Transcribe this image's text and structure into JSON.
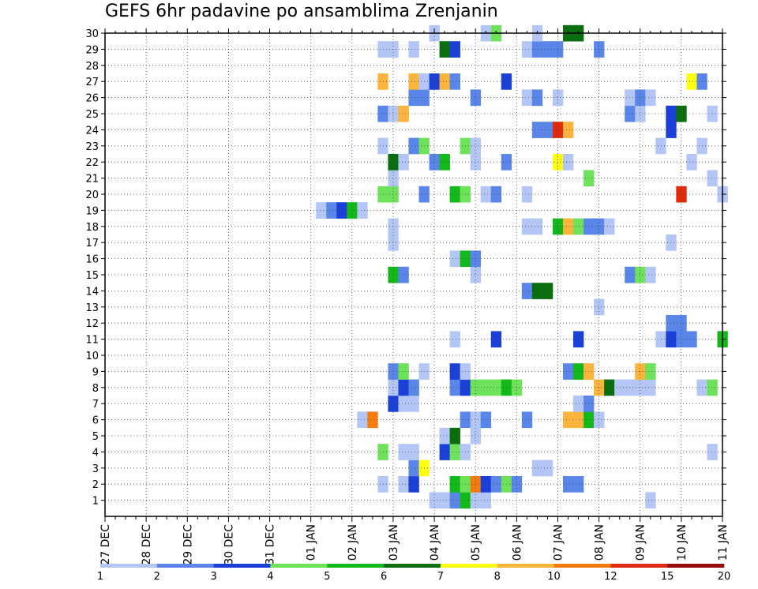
{
  "chart_data": {
    "type": "heatmap",
    "title": "GEFS 6hr padavine po ansamblima Zrenjanin",
    "x_ticks": [
      "27 DEC",
      "28 DEC",
      "29 DEC",
      "30 DEC",
      "31 DEC",
      "01 JAN",
      "02 JAN",
      "03 JAN",
      "04 JAN",
      "05 JAN",
      "06 JAN",
      "07 JAN",
      "08 JAN",
      "09 JAN",
      "10 JAN",
      "11 JAN"
    ],
    "x_range_hours": [
      0,
      360
    ],
    "step_hours": 6,
    "y_ticks": [
      "1",
      "2",
      "3",
      "4",
      "5",
      "6",
      "7",
      "8",
      "9",
      "10",
      "11",
      "12",
      "13",
      "14",
      "15",
      "16",
      "17",
      "18",
      "19",
      "20",
      "21",
      "22",
      "23",
      "24",
      "25",
      "26",
      "27",
      "28",
      "29",
      "30"
    ],
    "y_range": [
      0,
      30
    ],
    "grid": true,
    "colorbar": {
      "labels": [
        "1",
        "2",
        "3",
        "4",
        "5",
        "6",
        "7",
        "8",
        "10",
        "12",
        "15",
        "20"
      ],
      "colors": [
        "#b3c6f5",
        "#5a86ea",
        "#1a40d8",
        "#6de25a",
        "#13b81a",
        "#0b6e0e",
        "#ffff14",
        "#fbb43c",
        "#f57c0d",
        "#e02a0c",
        "#960c0c"
      ]
    },
    "cells": [
      {
        "x": 192,
        "y": 1,
        "c": 0
      },
      {
        "x": 198,
        "y": 1,
        "c": 0
      },
      {
        "x": 204,
        "y": 1,
        "c": 1
      },
      {
        "x": 210,
        "y": 1,
        "c": 4
      },
      {
        "x": 216,
        "y": 1,
        "c": 0
      },
      {
        "x": 222,
        "y": 1,
        "c": 0
      },
      {
        "x": 318,
        "y": 1,
        "c": 0
      },
      {
        "x": 162,
        "y": 2,
        "c": 0
      },
      {
        "x": 174,
        "y": 2,
        "c": 0
      },
      {
        "x": 180,
        "y": 2,
        "c": 2
      },
      {
        "x": 204,
        "y": 2,
        "c": 4
      },
      {
        "x": 210,
        "y": 2,
        "c": 3
      },
      {
        "x": 216,
        "y": 2,
        "c": 8
      },
      {
        "x": 222,
        "y": 2,
        "c": 2
      },
      {
        "x": 228,
        "y": 2,
        "c": 1
      },
      {
        "x": 234,
        "y": 2,
        "c": 3
      },
      {
        "x": 240,
        "y": 2,
        "c": 1
      },
      {
        "x": 270,
        "y": 2,
        "c": 1
      },
      {
        "x": 276,
        "y": 2,
        "c": 1
      },
      {
        "x": 180,
        "y": 3,
        "c": 1
      },
      {
        "x": 186,
        "y": 3,
        "c": 6
      },
      {
        "x": 252,
        "y": 3,
        "c": 0
      },
      {
        "x": 258,
        "y": 3,
        "c": 0
      },
      {
        "x": 162,
        "y": 4,
        "c": 3
      },
      {
        "x": 174,
        "y": 4,
        "c": 0
      },
      {
        "x": 180,
        "y": 4,
        "c": 0
      },
      {
        "x": 198,
        "y": 4,
        "c": 2
      },
      {
        "x": 204,
        "y": 4,
        "c": 3
      },
      {
        "x": 210,
        "y": 4,
        "c": 0
      },
      {
        "x": 354,
        "y": 4,
        "c": 0
      },
      {
        "x": 198,
        "y": 5,
        "c": 0
      },
      {
        "x": 204,
        "y": 5,
        "c": 5
      },
      {
        "x": 216,
        "y": 5,
        "c": 0
      },
      {
        "x": 150,
        "y": 6,
        "c": 0
      },
      {
        "x": 156,
        "y": 6,
        "c": 8
      },
      {
        "x": 210,
        "y": 6,
        "c": 1
      },
      {
        "x": 216,
        "y": 6,
        "c": 0
      },
      {
        "x": 222,
        "y": 6,
        "c": 1
      },
      {
        "x": 246,
        "y": 6,
        "c": 1
      },
      {
        "x": 270,
        "y": 6,
        "c": 7
      },
      {
        "x": 276,
        "y": 6,
        "c": 7
      },
      {
        "x": 282,
        "y": 6,
        "c": 4
      },
      {
        "x": 288,
        "y": 6,
        "c": 0
      },
      {
        "x": 168,
        "y": 7,
        "c": 2
      },
      {
        "x": 174,
        "y": 7,
        "c": 0
      },
      {
        "x": 180,
        "y": 7,
        "c": 0
      },
      {
        "x": 276,
        "y": 7,
        "c": 0
      },
      {
        "x": 282,
        "y": 7,
        "c": 1
      },
      {
        "x": 168,
        "y": 8,
        "c": 0
      },
      {
        "x": 174,
        "y": 8,
        "c": 2
      },
      {
        "x": 180,
        "y": 8,
        "c": 1
      },
      {
        "x": 204,
        "y": 8,
        "c": 1
      },
      {
        "x": 210,
        "y": 8,
        "c": 2
      },
      {
        "x": 216,
        "y": 8,
        "c": 3
      },
      {
        "x": 222,
        "y": 8,
        "c": 3
      },
      {
        "x": 228,
        "y": 8,
        "c": 3
      },
      {
        "x": 234,
        "y": 8,
        "c": 4
      },
      {
        "x": 240,
        "y": 8,
        "c": 3
      },
      {
        "x": 288,
        "y": 8,
        "c": 7
      },
      {
        "x": 294,
        "y": 8,
        "c": 5
      },
      {
        "x": 300,
        "y": 8,
        "c": 0
      },
      {
        "x": 306,
        "y": 8,
        "c": 0
      },
      {
        "x": 312,
        "y": 8,
        "c": 0
      },
      {
        "x": 318,
        "y": 8,
        "c": 0
      },
      {
        "x": 348,
        "y": 8,
        "c": 0
      },
      {
        "x": 354,
        "y": 8,
        "c": 3
      },
      {
        "x": 168,
        "y": 9,
        "c": 1
      },
      {
        "x": 174,
        "y": 9,
        "c": 3
      },
      {
        "x": 186,
        "y": 9,
        "c": 0
      },
      {
        "x": 204,
        "y": 9,
        "c": 2
      },
      {
        "x": 210,
        "y": 9,
        "c": 0
      },
      {
        "x": 270,
        "y": 9,
        "c": 1
      },
      {
        "x": 276,
        "y": 9,
        "c": 4
      },
      {
        "x": 282,
        "y": 9,
        "c": 7
      },
      {
        "x": 312,
        "y": 9,
        "c": 7
      },
      {
        "x": 318,
        "y": 9,
        "c": 3
      },
      {
        "x": 204,
        "y": 11,
        "c": 0
      },
      {
        "x": 228,
        "y": 11,
        "c": 2
      },
      {
        "x": 276,
        "y": 11,
        "c": 2
      },
      {
        "x": 324,
        "y": 11,
        "c": 0
      },
      {
        "x": 330,
        "y": 11,
        "c": 2
      },
      {
        "x": 336,
        "y": 11,
        "c": 1
      },
      {
        "x": 342,
        "y": 11,
        "c": 1
      },
      {
        "x": 360,
        "y": 11,
        "c": 4
      },
      {
        "x": 330,
        "y": 12,
        "c": 1
      },
      {
        "x": 336,
        "y": 12,
        "c": 1
      },
      {
        "x": 288,
        "y": 13,
        "c": 0
      },
      {
        "x": 246,
        "y": 14,
        "c": 1
      },
      {
        "x": 252,
        "y": 14,
        "c": 5
      },
      {
        "x": 258,
        "y": 14,
        "c": 5
      },
      {
        "x": 168,
        "y": 15,
        "c": 4
      },
      {
        "x": 174,
        "y": 15,
        "c": 1
      },
      {
        "x": 216,
        "y": 15,
        "c": 0
      },
      {
        "x": 306,
        "y": 15,
        "c": 1
      },
      {
        "x": 312,
        "y": 15,
        "c": 3
      },
      {
        "x": 318,
        "y": 15,
        "c": 0
      },
      {
        "x": 204,
        "y": 16,
        "c": 0
      },
      {
        "x": 210,
        "y": 16,
        "c": 4
      },
      {
        "x": 216,
        "y": 16,
        "c": 1
      },
      {
        "x": 168,
        "y": 17,
        "c": 0
      },
      {
        "x": 330,
        "y": 17,
        "c": 0
      },
      {
        "x": 168,
        "y": 18,
        "c": 0
      },
      {
        "x": 246,
        "y": 18,
        "c": 0
      },
      {
        "x": 252,
        "y": 18,
        "c": 0
      },
      {
        "x": 264,
        "y": 18,
        "c": 4
      },
      {
        "x": 270,
        "y": 18,
        "c": 7
      },
      {
        "x": 276,
        "y": 18,
        "c": 3
      },
      {
        "x": 282,
        "y": 18,
        "c": 1
      },
      {
        "x": 288,
        "y": 18,
        "c": 1
      },
      {
        "x": 294,
        "y": 18,
        "c": 0
      },
      {
        "x": 126,
        "y": 19,
        "c": 0
      },
      {
        "x": 132,
        "y": 19,
        "c": 1
      },
      {
        "x": 138,
        "y": 19,
        "c": 2
      },
      {
        "x": 144,
        "y": 19,
        "c": 4
      },
      {
        "x": 150,
        "y": 19,
        "c": 0
      },
      {
        "x": 162,
        "y": 20,
        "c": 3
      },
      {
        "x": 168,
        "y": 20,
        "c": 3
      },
      {
        "x": 186,
        "y": 20,
        "c": 1
      },
      {
        "x": 204,
        "y": 20,
        "c": 4
      },
      {
        "x": 210,
        "y": 20,
        "c": 3
      },
      {
        "x": 222,
        "y": 20,
        "c": 0
      },
      {
        "x": 228,
        "y": 20,
        "c": 1
      },
      {
        "x": 246,
        "y": 20,
        "c": 0
      },
      {
        "x": 336,
        "y": 20,
        "c": 9
      },
      {
        "x": 360,
        "y": 20,
        "c": 0
      },
      {
        "x": 168,
        "y": 21,
        "c": 0
      },
      {
        "x": 282,
        "y": 21,
        "c": 3
      },
      {
        "x": 354,
        "y": 21,
        "c": 0
      },
      {
        "x": 168,
        "y": 22,
        "c": 5
      },
      {
        "x": 174,
        "y": 22,
        "c": 0
      },
      {
        "x": 192,
        "y": 22,
        "c": 1
      },
      {
        "x": 198,
        "y": 22,
        "c": 4
      },
      {
        "x": 216,
        "y": 22,
        "c": 0
      },
      {
        "x": 234,
        "y": 22,
        "c": 1
      },
      {
        "x": 264,
        "y": 22,
        "c": 6
      },
      {
        "x": 270,
        "y": 22,
        "c": 0
      },
      {
        "x": 342,
        "y": 22,
        "c": 0
      },
      {
        "x": 162,
        "y": 23,
        "c": 0
      },
      {
        "x": 180,
        "y": 23,
        "c": 1
      },
      {
        "x": 186,
        "y": 23,
        "c": 3
      },
      {
        "x": 210,
        "y": 23,
        "c": 3
      },
      {
        "x": 216,
        "y": 23,
        "c": 0
      },
      {
        "x": 324,
        "y": 23,
        "c": 0
      },
      {
        "x": 348,
        "y": 23,
        "c": 0
      },
      {
        "x": 252,
        "y": 24,
        "c": 1
      },
      {
        "x": 258,
        "y": 24,
        "c": 1
      },
      {
        "x": 264,
        "y": 24,
        "c": 9
      },
      {
        "x": 270,
        "y": 24,
        "c": 7
      },
      {
        "x": 330,
        "y": 24,
        "c": 2
      },
      {
        "x": 162,
        "y": 25,
        "c": 1
      },
      {
        "x": 168,
        "y": 25,
        "c": 0
      },
      {
        "x": 174,
        "y": 25,
        "c": 7
      },
      {
        "x": 306,
        "y": 25,
        "c": 1
      },
      {
        "x": 312,
        "y": 25,
        "c": 0
      },
      {
        "x": 330,
        "y": 25,
        "c": 2
      },
      {
        "x": 336,
        "y": 25,
        "c": 5
      },
      {
        "x": 354,
        "y": 25,
        "c": 0
      },
      {
        "x": 180,
        "y": 26,
        "c": 1
      },
      {
        "x": 186,
        "y": 26,
        "c": 1
      },
      {
        "x": 216,
        "y": 26,
        "c": 1
      },
      {
        "x": 246,
        "y": 26,
        "c": 0
      },
      {
        "x": 252,
        "y": 26,
        "c": 1
      },
      {
        "x": 264,
        "y": 26,
        "c": 0
      },
      {
        "x": 306,
        "y": 26,
        "c": 0
      },
      {
        "x": 312,
        "y": 26,
        "c": 1
      },
      {
        "x": 318,
        "y": 26,
        "c": 0
      },
      {
        "x": 162,
        "y": 27,
        "c": 7
      },
      {
        "x": 180,
        "y": 27,
        "c": 7
      },
      {
        "x": 186,
        "y": 27,
        "c": 0
      },
      {
        "x": 192,
        "y": 27,
        "c": 2
      },
      {
        "x": 198,
        "y": 27,
        "c": 7
      },
      {
        "x": 204,
        "y": 27,
        "c": 1
      },
      {
        "x": 234,
        "y": 27,
        "c": 2
      },
      {
        "x": 342,
        "y": 27,
        "c": 6
      },
      {
        "x": 348,
        "y": 27,
        "c": 1
      },
      {
        "x": 162,
        "y": 29,
        "c": 0
      },
      {
        "x": 168,
        "y": 29,
        "c": 0
      },
      {
        "x": 180,
        "y": 29,
        "c": 0
      },
      {
        "x": 198,
        "y": 29,
        "c": 5
      },
      {
        "x": 204,
        "y": 29,
        "c": 2
      },
      {
        "x": 246,
        "y": 29,
        "c": 0
      },
      {
        "x": 252,
        "y": 29,
        "c": 1
      },
      {
        "x": 258,
        "y": 29,
        "c": 1
      },
      {
        "x": 264,
        "y": 29,
        "c": 1
      },
      {
        "x": 288,
        "y": 29,
        "c": 1
      },
      {
        "x": 192,
        "y": 30,
        "c": 0
      },
      {
        "x": 222,
        "y": 30,
        "c": 0
      },
      {
        "x": 228,
        "y": 30,
        "c": 3
      },
      {
        "x": 252,
        "y": 30,
        "c": 0
      },
      {
        "x": 270,
        "y": 30,
        "c": 5
      },
      {
        "x": 276,
        "y": 30,
        "c": 5
      }
    ]
  }
}
